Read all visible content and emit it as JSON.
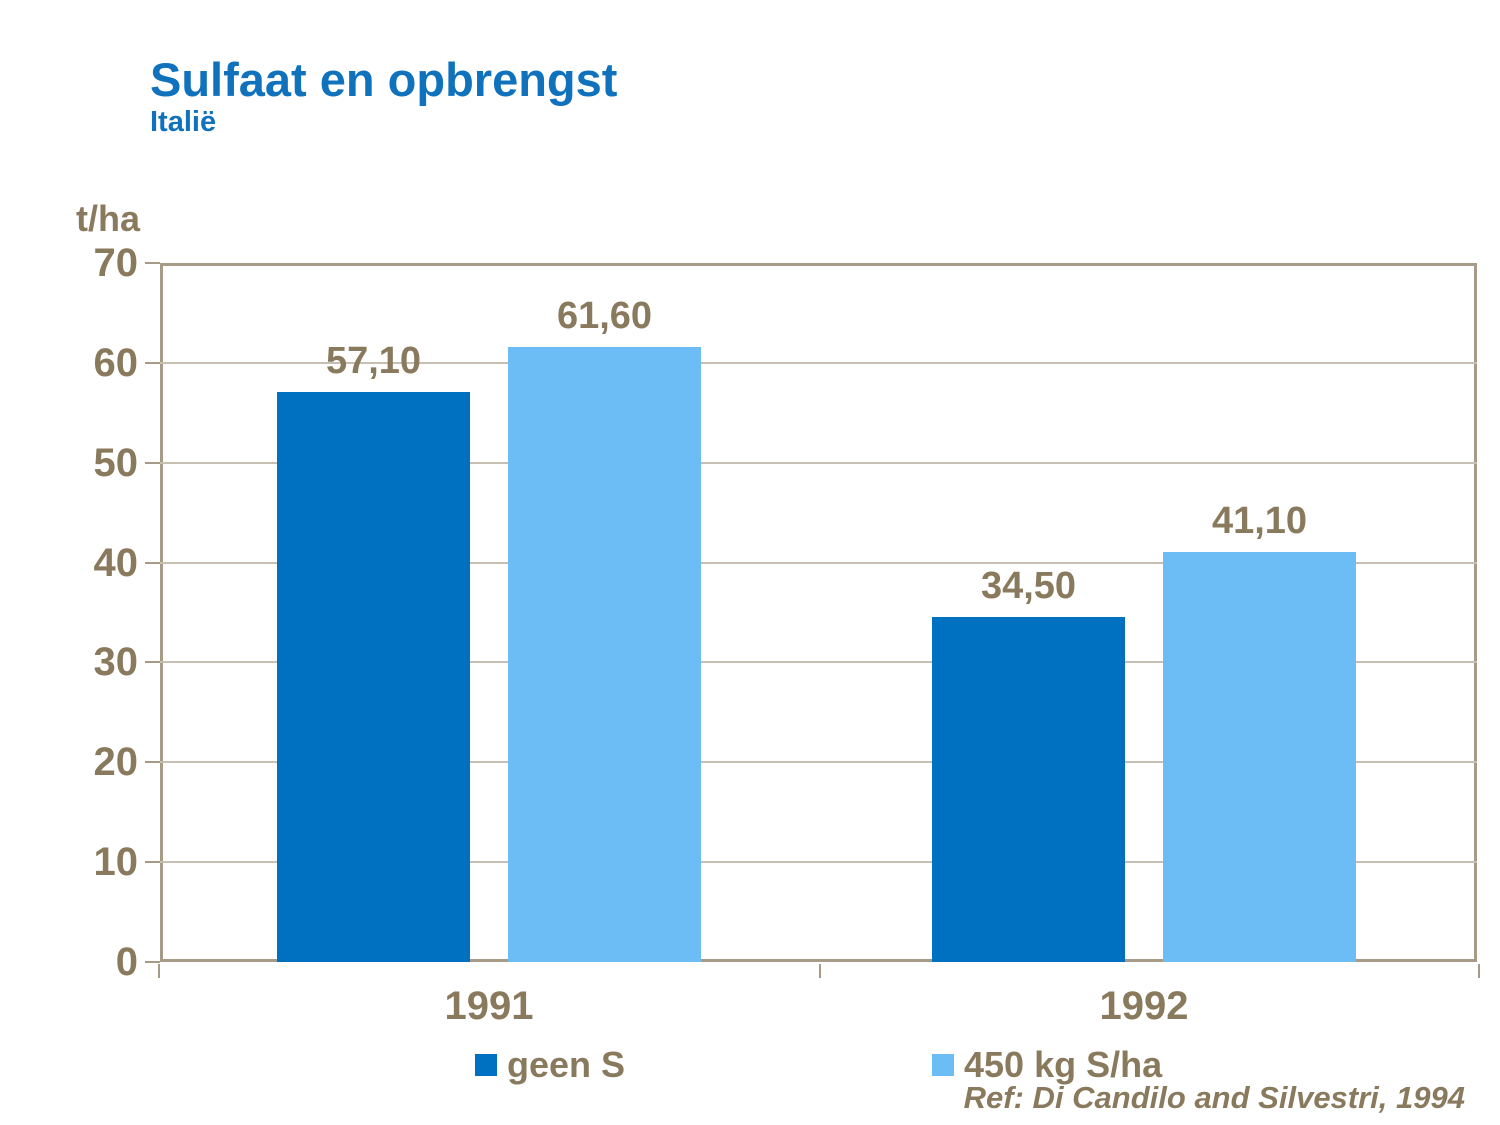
{
  "title": "Sulfaat en opbrengst",
  "subtitle": "Italië",
  "unit_label": "t/ha",
  "ref_label": "Ref: Di Candilo and Silvestri, 1994",
  "colors": {
    "title_blue": "#1072BC",
    "series1_dark_blue": "#0070C0",
    "series2_light_blue": "#6CBDF5",
    "axis_text_brown": "#8A7A5D",
    "gridline": "#C6BFB2",
    "frame_border": "#A79A86"
  },
  "legend": {
    "items": [
      {
        "label": "geen S",
        "color": "#0070C0"
      },
      {
        "label": "450 kg S/ha",
        "color": "#6CBDF5"
      }
    ]
  },
  "chart_data": {
    "type": "bar",
    "title": "Sulfaat en opbrengst",
    "subtitle": "Italië",
    "ylabel": "t/ha",
    "xlabel": "",
    "ylim": [
      0,
      70
    ],
    "ytick_interval": 10,
    "ytick_labels": [
      "0",
      "10",
      "20",
      "30",
      "40",
      "50",
      "60",
      "70"
    ],
    "grid": true,
    "legend_position": "bottom",
    "categories": [
      "1991",
      "1992"
    ],
    "series": [
      {
        "name": "geen S",
        "color": "#0070C0",
        "values": [
          57.1,
          34.5
        ],
        "labels": [
          "57,10",
          "34,50"
        ]
      },
      {
        "name": "450 kg S/ha",
        "color": "#6CBDF5",
        "values": [
          61.6,
          41.1
        ],
        "labels": [
          "61,60",
          "41,10"
        ]
      }
    ],
    "annotations": [
      "Ref: Di Candilo and Silvestri, 1994"
    ]
  }
}
